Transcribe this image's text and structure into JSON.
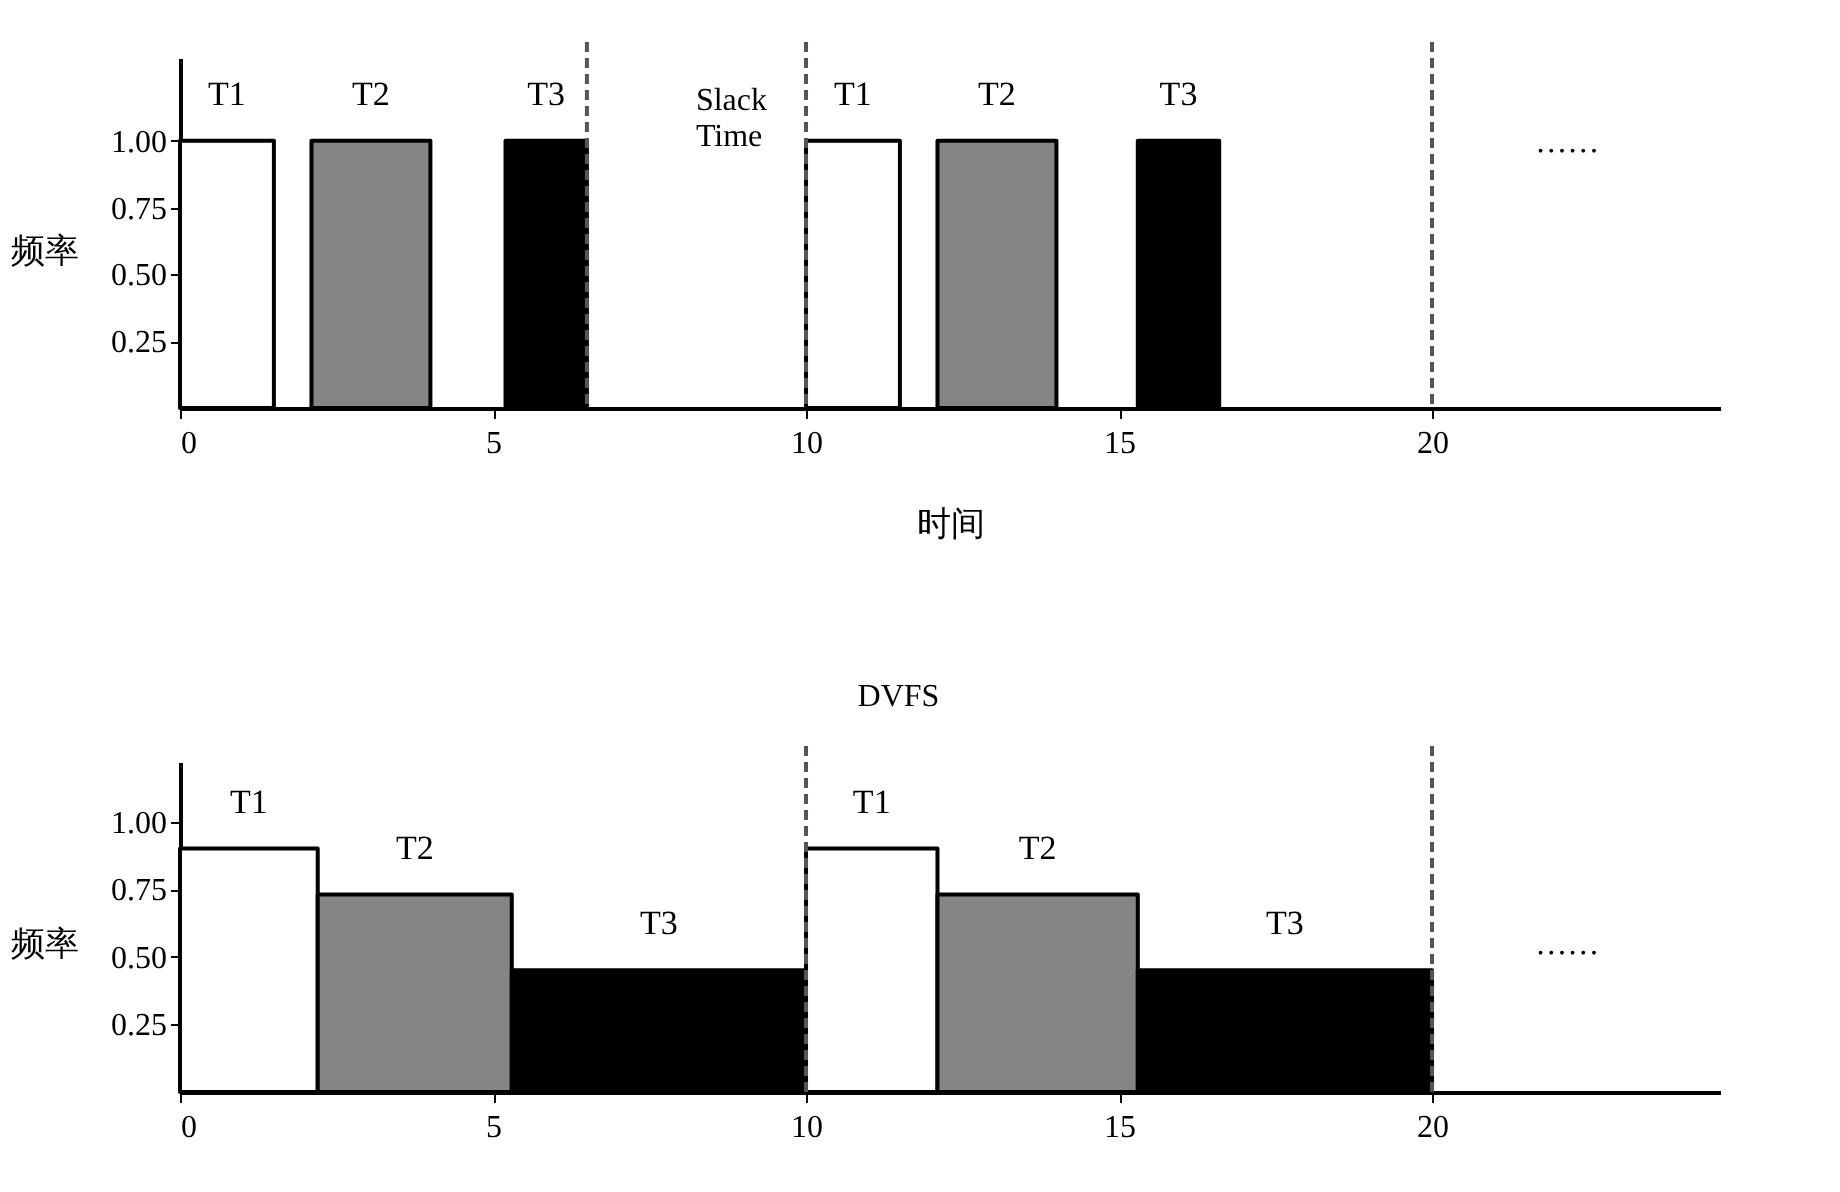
{
  "chart_data": [
    {
      "type": "area",
      "xlabel": "时间",
      "ylabel": "频率",
      "xlim": [
        0,
        24.6
      ],
      "ylim": [
        0,
        1.31
      ],
      "xticks": [
        0,
        5,
        10,
        15,
        20
      ],
      "yticks": [
        {
          "value": 0.25,
          "label": "0.25"
        },
        {
          "value": 0.5,
          "label": "0.50"
        },
        {
          "value": 0.75,
          "label": "0.75"
        },
        {
          "value": 1,
          "label": "1.00"
        }
      ],
      "grid": false,
      "legend": false,
      "series": [
        {
          "name": "T1",
          "color": "#ffffff",
          "x": [
            0,
            1.5
          ],
          "values": [
            1,
            1
          ]
        },
        {
          "name": "T2",
          "color": "#858585",
          "x": [
            2.1,
            4.0
          ],
          "values": [
            1,
            1
          ]
        },
        {
          "name": "T3",
          "color": "#000000",
          "x": [
            5.2,
            6.5
          ],
          "values": [
            1,
            1
          ]
        },
        {
          "name": "T1",
          "color": "#ffffff",
          "x": [
            10,
            11.5
          ],
          "values": [
            1,
            1
          ]
        },
        {
          "name": "T2",
          "color": "#858585",
          "x": [
            12.1,
            14.0
          ],
          "values": [
            1,
            1
          ]
        },
        {
          "name": "T3",
          "color": "#000000",
          "x": [
            15.3,
            16.6
          ],
          "values": [
            1,
            1
          ]
        }
      ],
      "ref_lines": [
        {
          "axis": "x",
          "value": 6.5,
          "color": "#555555",
          "line_style": "dashed"
        },
        {
          "axis": "x",
          "value": 10,
          "color": "#555555",
          "line_style": "dashed"
        },
        {
          "axis": "x",
          "value": 20,
          "color": "#555555",
          "line_style": "dashed"
        }
      ],
      "annotations": [
        "Slack Time",
        "……"
      ]
    },
    {
      "type": "area",
      "ylabel": "频率",
      "xlim": [
        0,
        24.6
      ],
      "ylim": [
        0,
        1.22
      ],
      "xticks": [
        0,
        5,
        10,
        15,
        20
      ],
      "yticks": [
        {
          "value": 0.25,
          "label": "0.25"
        },
        {
          "value": 0.5,
          "label": "0.50"
        },
        {
          "value": 0.75,
          "label": "0.75"
        },
        {
          "value": 1,
          "label": "1.00"
        }
      ],
      "grid": false,
      "legend": false,
      "series": [
        {
          "name": "T1",
          "color": "#ffffff",
          "x": [
            0,
            2.2
          ],
          "values": [
            0.9,
            0.9
          ]
        },
        {
          "name": "T2",
          "color": "#858585",
          "x": [
            2.2,
            5.3
          ],
          "values": [
            0.73,
            0.73
          ]
        },
        {
          "name": "T3",
          "color": "#000000",
          "x": [
            5.3,
            10
          ],
          "values": [
            0.45,
            0.45
          ]
        },
        {
          "name": "T1",
          "color": "#ffffff",
          "x": [
            10,
            12.1
          ],
          "values": [
            0.9,
            0.9
          ]
        },
        {
          "name": "T2",
          "color": "#858585",
          "x": [
            12.1,
            15.3
          ],
          "values": [
            0.73,
            0.73
          ]
        },
        {
          "name": "T3",
          "color": "#000000",
          "x": [
            15.3,
            20
          ],
          "values": [
            0.45,
            0.45
          ]
        }
      ],
      "ref_lines": [
        {
          "axis": "x",
          "value": 10,
          "color": "#555555",
          "line_style": "dashed"
        },
        {
          "axis": "x",
          "value": 20,
          "color": "#555555",
          "line_style": "dashed"
        }
      ],
      "annotations": [
        "DVFS",
        "……"
      ]
    }
  ]
}
